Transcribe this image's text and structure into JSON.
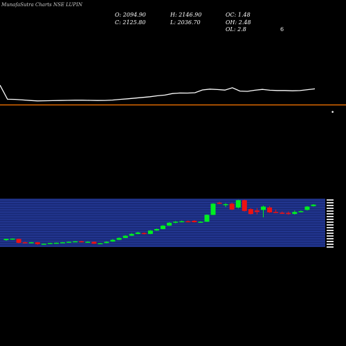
{
  "header": {
    "brand": "MunafaSutra Charts NSE LUPIN",
    "open": "O: 2094.90",
    "close": "C: 2125.80",
    "high": "H: 2146.90",
    "low": "L: 2036.70",
    "oc": "OC: 1.48",
    "oh": "OH: 2.48",
    "ol": "OL: 2.8",
    "corner_mark": "6"
  },
  "colors": {
    "background": "#000000",
    "up_candle": "#00ee22",
    "down_candle": "#ee1111",
    "price_line": "#ffffff",
    "ref_line": "#ff7700",
    "band": "#1a2b7a",
    "grid": "#3a55cc"
  },
  "chart_data": [
    {
      "type": "line",
      "series": [
        {
          "values": [
            2140,
            1970,
            1968,
            1962,
            1955,
            1950,
            1952,
            1953,
            1955,
            1957,
            1958,
            1958,
            1957,
            1955,
            1956,
            1960,
            1968,
            1975,
            1983,
            1992,
            2000,
            2012,
            2020,
            2038,
            2045,
            2044,
            2048,
            2082,
            2092,
            2087,
            2080,
            2108,
            2068,
            2065,
            2078,
            2088,
            2078,
            2075,
            2075,
            2072,
            2074,
            2085,
            2095
          ]
        }
      ],
      "reference_line": 1902
    },
    {
      "type": "candlestick",
      "series": [
        {
          "ohlc": [
            [
              1907,
              1912,
              1904,
              1912
            ],
            [
              1912,
              1914,
              1908,
              1913
            ],
            [
              1912,
              1913,
              1894,
              1896
            ],
            [
              1898,
              1900,
              1894,
              1897
            ],
            [
              1897,
              1899,
              1895,
              1898
            ],
            [
              1898,
              1899,
              1888,
              1890
            ],
            [
              1890,
              1893,
              1889,
              1892
            ],
            [
              1892,
              1896,
              1891,
              1895
            ],
            [
              1895,
              1897,
              1894,
              1896
            ],
            [
              1896,
              1899,
              1895,
              1898
            ],
            [
              1898,
              1901,
              1897,
              1900
            ],
            [
              1900,
              1903,
              1899,
              1902
            ],
            [
              1902,
              1904,
              1898,
              1900
            ],
            [
              1900,
              1902,
              1898,
              1900
            ],
            [
              1900,
              1901,
              1891,
              1892
            ],
            [
              1893,
              1895,
              1892,
              1894
            ],
            [
              1895,
              1902,
              1894,
              1900
            ],
            [
              1901,
              1911,
              1900,
              1908
            ],
            [
              1908,
              1918,
              1907,
              1916
            ],
            [
              1916,
              1927,
              1915,
              1925
            ],
            [
              1925,
              1936,
              1924,
              1932
            ],
            [
              1932,
              1941,
              1931,
              1938
            ],
            [
              1936,
              1938,
              1930,
              1932
            ],
            [
              1932,
              1948,
              1931,
              1946
            ],
            [
              1946,
              1954,
              1945,
              1952
            ],
            [
              1952,
              1968,
              1951,
              1966
            ],
            [
              1966,
              1980,
              1965,
              1978
            ],
            [
              1978,
              1985,
              1976,
              1982
            ],
            [
              1982,
              1987,
              1980,
              1984
            ],
            [
              1984,
              1987,
              1980,
              1983
            ],
            [
              1986,
              1988,
              1979,
              1980
            ],
            [
              1980,
              1984,
              1978,
              1982
            ],
            [
              1982,
              2012,
              1981,
              2010
            ],
            [
              2010,
              2058,
              2009,
              2056
            ],
            [
              2060,
              2064,
              2054,
              2056
            ],
            [
              2050,
              2058,
              2042,
              2054
            ],
            [
              2056,
              2060,
              2030,
              2032
            ],
            [
              2040,
              2072,
              2036,
              2070
            ],
            [
              2070,
              2072,
              2024,
              2026
            ],
            [
              2034,
              2037,
              2012,
              2014
            ],
            [
              2028,
              2038,
              2012,
              2022
            ],
            [
              2030,
              2048,
              2000,
              2044
            ],
            [
              2040,
              2046,
              2018,
              2020
            ],
            [
              2022,
              2032,
              2019,
              2021
            ],
            [
              2019,
              2024,
              2014,
              2015
            ],
            [
              2018,
              2024,
              2010,
              2016
            ],
            [
              2014,
              2028,
              2011,
              2022
            ],
            [
              2024,
              2028,
              2020,
              2025
            ],
            [
              2030,
              2046,
              2028,
              2044
            ],
            [
              2046,
              2054,
              2044,
              2052
            ]
          ]
        }
      ]
    }
  ]
}
